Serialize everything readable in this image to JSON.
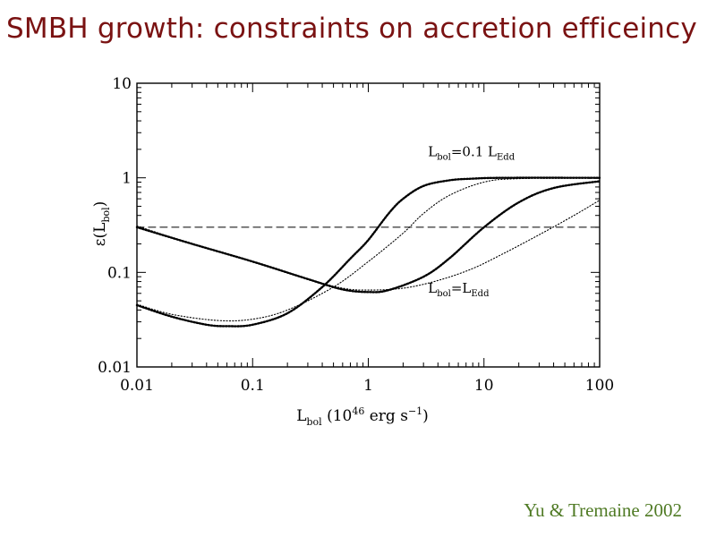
{
  "slide": {
    "title": "SMBH growth: constraints on accretion efficeincy",
    "citation": "Yu & Tremaine 2002"
  },
  "colors": {
    "title": "#7a1212",
    "citation": "#4f7a24",
    "ink": "#000000"
  },
  "chart_data": {
    "type": "line",
    "x_scale": "log",
    "y_scale": "log",
    "xlim": [
      0.01,
      100
    ],
    "ylim": [
      0.01,
      10
    ],
    "x_ticks": [
      {
        "value": 0.01,
        "label": "0.01"
      },
      {
        "value": 0.1,
        "label": "0.1"
      },
      {
        "value": 1,
        "label": "1"
      },
      {
        "value": 10,
        "label": "10"
      },
      {
        "value": 100,
        "label": "100"
      }
    ],
    "y_ticks": [
      {
        "value": 0.01,
        "label": "0.01"
      },
      {
        "value": 0.1,
        "label": "0.1"
      },
      {
        "value": 1,
        "label": "1"
      },
      {
        "value": 10,
        "label": "10"
      }
    ],
    "xlabel": {
      "main": "L",
      "sub": "bol",
      "pre": " (10",
      "sup": "46",
      "mid": " erg s",
      "sup2": "−1",
      "post": ")"
    },
    "ylabel": {
      "pre": "ε(L",
      "sub": "bol",
      "post": ")"
    },
    "annotations": [
      {
        "id": "upper",
        "main": "L",
        "sub": "bol",
        "text": "=0.1 L",
        "sub2": "Edd",
        "x": 1.5,
        "y": 1.7
      },
      {
        "id": "lower",
        "main": "L",
        "sub": "bol",
        "text": "=L",
        "sub2": "Edd",
        "x": 1.5,
        "y": 0.061
      }
    ],
    "series": [
      {
        "style": "dashed",
        "points": [
          [
            0.01,
            0.3
          ],
          [
            100,
            0.3
          ]
        ]
      },
      {
        "style": "dotted-heavy",
        "points": [
          [
            0.01,
            0.045
          ],
          [
            0.02,
            0.034
          ],
          [
            0.04,
            0.028
          ],
          [
            0.06,
            0.027
          ],
          [
            0.1,
            0.028
          ],
          [
            0.2,
            0.037
          ],
          [
            0.4,
            0.07
          ],
          [
            0.7,
            0.14
          ],
          [
            1,
            0.22
          ],
          [
            1.5,
            0.42
          ],
          [
            2,
            0.6
          ],
          [
            3,
            0.82
          ],
          [
            5,
            0.94
          ],
          [
            8,
            0.98
          ],
          [
            15,
            1.0
          ],
          [
            100,
            1.0
          ]
        ]
      },
      {
        "style": "dotted-thin",
        "points": [
          [
            0.01,
            0.046
          ],
          [
            0.02,
            0.036
          ],
          [
            0.05,
            0.031
          ],
          [
            0.1,
            0.032
          ],
          [
            0.2,
            0.04
          ],
          [
            0.5,
            0.07
          ],
          [
            1,
            0.13
          ],
          [
            2,
            0.26
          ],
          [
            3,
            0.42
          ],
          [
            5,
            0.65
          ],
          [
            10,
            0.9
          ],
          [
            20,
            0.98
          ],
          [
            100,
            1.0
          ]
        ]
      },
      {
        "style": "dotted-heavy",
        "points": [
          [
            0.01,
            0.3
          ],
          [
            0.03,
            0.2
          ],
          [
            0.1,
            0.13
          ],
          [
            0.3,
            0.085
          ],
          [
            0.6,
            0.066
          ],
          [
            1,
            0.062
          ],
          [
            1.5,
            0.065
          ],
          [
            3,
            0.09
          ],
          [
            5,
            0.14
          ],
          [
            10,
            0.3
          ],
          [
            20,
            0.55
          ],
          [
            40,
            0.78
          ],
          [
            100,
            0.92
          ]
        ]
      },
      {
        "style": "dotted-thin",
        "points": [
          [
            0.01,
            0.31
          ],
          [
            0.03,
            0.2
          ],
          [
            0.1,
            0.13
          ],
          [
            0.3,
            0.085
          ],
          [
            0.6,
            0.068
          ],
          [
            1,
            0.065
          ],
          [
            2,
            0.068
          ],
          [
            4,
            0.082
          ],
          [
            8,
            0.11
          ],
          [
            15,
            0.16
          ],
          [
            30,
            0.25
          ],
          [
            60,
            0.4
          ],
          [
            100,
            0.58
          ]
        ]
      }
    ]
  }
}
